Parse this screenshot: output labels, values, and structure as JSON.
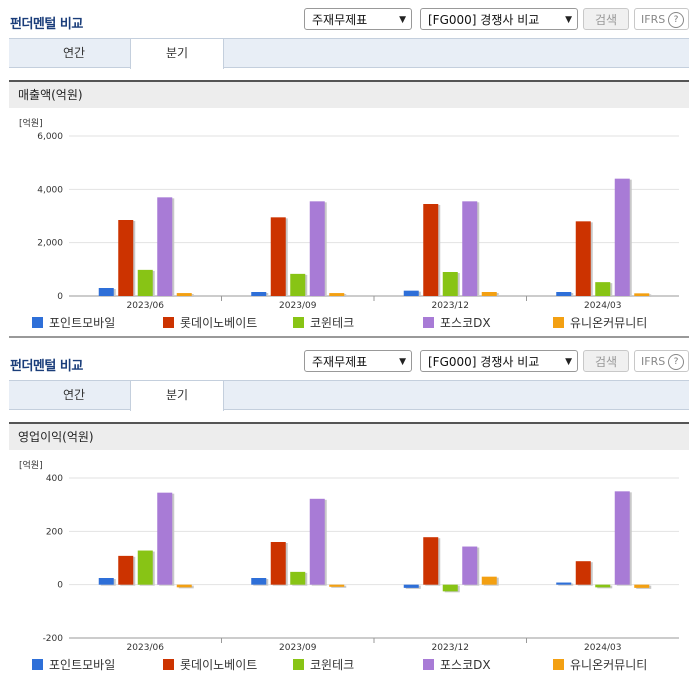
{
  "panels": [
    {
      "title": "펀더멘털 비교",
      "select1": "주재무제표",
      "select2": "[FG000] 경쟁사 비교",
      "search_label": "검색",
      "ifrs_label": "IFRS",
      "tabs": [
        "연간",
        "분기"
      ],
      "active_tab": "분기",
      "section_title": "매출액(억원)",
      "chart_data": {
        "type": "bar",
        "unit_label": "[억원]",
        "categories": [
          "2023/06",
          "2023/09",
          "2023/12",
          "2024/03"
        ],
        "ylim": [
          0,
          6000
        ],
        "yticks": [
          0,
          2000,
          4000,
          6000
        ],
        "ytick_labels": [
          "0",
          "2,000",
          "4,000",
          "6,000"
        ],
        "series": [
          {
            "name": "포인트모바일",
            "color": "#2e6fd8",
            "values": [
              300,
              150,
              200,
              150
            ]
          },
          {
            "name": "롯데이노베이트",
            "color": "#cc3300",
            "values": [
              2850,
              2950,
              3450,
              2800
            ]
          },
          {
            "name": "코윈테크",
            "color": "#88c415",
            "values": [
              980,
              830,
              900,
              520
            ]
          },
          {
            "name": "포스코DX",
            "color": "#a87bd6",
            "values": [
              3700,
              3550,
              3550,
              4400
            ]
          },
          {
            "name": "유니온커뮤니티",
            "color": "#f3a012",
            "values": [
              110,
              110,
              150,
              100
            ]
          }
        ]
      }
    },
    {
      "title": "펀더멘털 비교",
      "select1": "주재무제표",
      "select2": "[FG000] 경쟁사 비교",
      "search_label": "검색",
      "ifrs_label": "IFRS",
      "tabs": [
        "연간",
        "분기"
      ],
      "active_tab": "분기",
      "section_title": "영업이익(억원)",
      "chart_data": {
        "type": "bar",
        "unit_label": "[억원]",
        "categories": [
          "2023/06",
          "2023/09",
          "2023/12",
          "2024/03"
        ],
        "ylim": [
          -200,
          400
        ],
        "yticks": [
          -200,
          0,
          200,
          400
        ],
        "ytick_labels": [
          "-200",
          "0",
          "200",
          "400"
        ],
        "series": [
          {
            "name": "포인트모바일",
            "color": "#2e6fd8",
            "values": [
              25,
              25,
              -12,
              8
            ]
          },
          {
            "name": "롯데이노베이트",
            "color": "#cc3300",
            "values": [
              108,
              160,
              178,
              88
            ]
          },
          {
            "name": "코윈테크",
            "color": "#88c415",
            "values": [
              128,
              48,
              -25,
              -10
            ]
          },
          {
            "name": "포스코DX",
            "color": "#a87bd6",
            "values": [
              345,
              322,
              143,
              350
            ]
          },
          {
            "name": "유니온커뮤니티",
            "color": "#f3a012",
            "values": [
              -10,
              -8,
              30,
              -12
            ]
          }
        ]
      }
    }
  ],
  "icons": {
    "dropdown": "chevron-down-icon",
    "help": "question-circle-icon"
  }
}
